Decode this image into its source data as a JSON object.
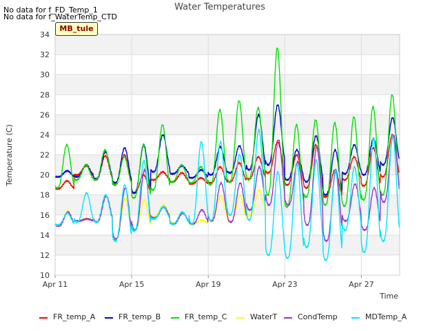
{
  "header": {
    "nodata_lines": [
      "No data for f_FD_Temp_1",
      "No data for f_WaterTemp_CTD"
    ],
    "site_badge": "MB_tule"
  },
  "chart_data": {
    "type": "line",
    "title": "Water Temperatures",
    "xlabel": "Time",
    "ylabel": "Temperature (C)",
    "xlim": [
      "2023-04-11",
      "2023-04-29"
    ],
    "ylim": [
      10,
      34
    ],
    "x_ticks": [
      "2023-04-11",
      "2023-04-15",
      "2023-04-19",
      "2023-04-23",
      "2023-04-27"
    ],
    "x_tick_labels": [
      "Apr 11",
      "Apr 15",
      "Apr 19",
      "Apr 23",
      "Apr 27"
    ],
    "y_ticks": [
      10,
      12,
      14,
      16,
      18,
      20,
      22,
      24,
      26,
      28,
      30,
      32,
      34
    ],
    "grid": true,
    "legend_position": "bottom",
    "x": [
      "2023-04-11",
      "2023-04-12",
      "2023-04-13",
      "2023-04-14",
      "2023-04-15",
      "2023-04-16",
      "2023-04-17",
      "2023-04-18",
      "2023-04-19",
      "2023-04-20",
      "2023-04-21",
      "2023-04-22",
      "2023-04-23",
      "2023-04-24",
      "2023-04-25",
      "2023-04-26",
      "2023-04-27",
      "2023-04-28"
    ],
    "series": [
      {
        "name": "FR_temp_A",
        "color": "#ff0000",
        "daily_min": [
          18.6,
          20.0,
          19.5,
          19.0,
          18.2,
          19.5,
          19.3,
          19.1,
          19.2,
          19.3,
          19.6,
          20.2,
          19.0,
          18.7,
          17.8,
          19.5,
          18.9,
          19.8
        ],
        "daily_max": [
          19.4,
          20.9,
          21.9,
          22.0,
          20.0,
          20.3,
          20.2,
          19.7,
          20.8,
          21.2,
          21.8,
          23.3,
          22.0,
          23.0,
          20.5,
          21.8,
          22.7,
          24.0
        ]
      },
      {
        "name": "FR_temp_B",
        "color": "#0000cc",
        "daily_min": [
          19.8,
          19.8,
          19.6,
          19.2,
          18.2,
          20.3,
          20.1,
          19.7,
          20.0,
          20.2,
          20.5,
          21.0,
          19.5,
          19.3,
          18.0,
          20.1,
          20.0,
          21.0
        ],
        "daily_max": [
          20.4,
          21.0,
          22.3,
          22.7,
          23.0,
          24.0,
          20.9,
          20.5,
          22.8,
          22.9,
          26.0,
          27.0,
          22.5,
          23.9,
          22.5,
          23.0,
          23.6,
          25.7
        ]
      },
      {
        "name": "FR_temp_C",
        "color": "#00e000",
        "daily_min": [
          18.7,
          19.5,
          19.5,
          19.0,
          17.7,
          18.5,
          19.3,
          19.2,
          19.0,
          19.3,
          19.5,
          18.0,
          16.8,
          17.8,
          17.0,
          16.9,
          17.5,
          18.0
        ],
        "daily_max": [
          23.0,
          21.0,
          22.5,
          21.8,
          23.0,
          25.0,
          21.0,
          20.8,
          26.5,
          27.4,
          26.7,
          32.7,
          25.0,
          25.5,
          25.2,
          25.8,
          26.8,
          28.0
        ]
      },
      {
        "name": "WaterT",
        "color": "#ffff00",
        "daily_min": [
          14.9,
          15.4,
          15.3,
          13.6,
          14.5,
          15.8,
          15.2,
          15.1,
          15.5,
          15.3,
          16.0
        ],
        "daily_max": [
          16.4,
          15.7,
          17.9,
          17.7,
          17.5,
          17.0,
          16.2,
          15.5,
          17.9,
          18.0,
          18.5
        ]
      },
      {
        "name": "CondTemp",
        "color": "#9933cc",
        "daily_min": [
          14.9,
          15.4,
          15.3,
          13.6,
          14.5,
          15.7,
          15.1,
          15.1,
          15.4,
          15.3,
          16.5,
          17.0,
          17.0,
          15.0,
          13.4,
          15.4,
          14.5,
          17.3
        ],
        "daily_max": [
          16.3,
          15.6,
          17.9,
          18.7,
          20.5,
          16.8,
          16.2,
          16.5,
          19.2,
          19.2,
          20.8,
          23.5,
          21.3,
          22.8,
          20.5,
          19.1,
          18.7,
          24.0
        ]
      },
      {
        "name": "MDTemp_A",
        "color": "#00e5ff",
        "daily_min": [
          15.0,
          15.3,
          15.3,
          13.4,
          14.4,
          15.6,
          15.1,
          15.1,
          15.4,
          16.0,
          15.5,
          12.0,
          11.7,
          12.8,
          11.5,
          14.5,
          12.3,
          13.4
        ],
        "daily_max": [
          16.2,
          18.2,
          18.0,
          19.0,
          21.4,
          16.8,
          16.3,
          23.3,
          23.3,
          22.0,
          24.5,
          20.3,
          21.1,
          21.5,
          20.5,
          20.8,
          23.7,
          23.9
        ]
      }
    ]
  }
}
